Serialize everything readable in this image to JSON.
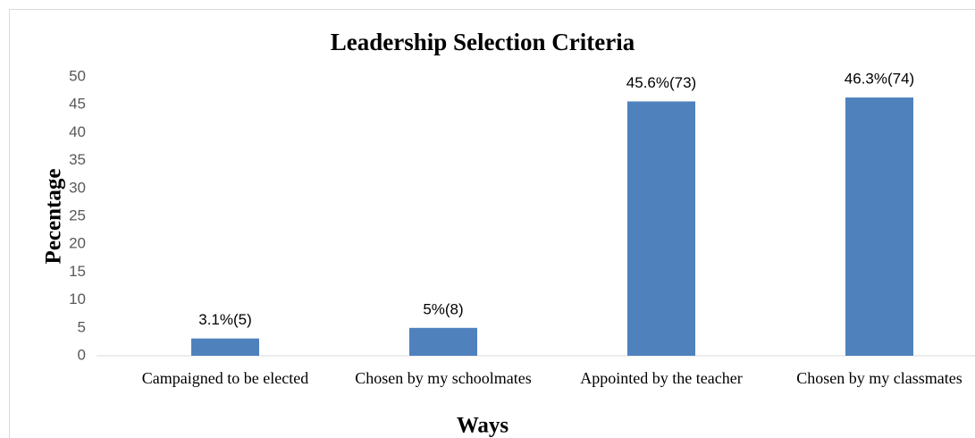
{
  "chart_data": {
    "type": "bar",
    "title": "Leadership Selection Criteria",
    "x_label": "Ways",
    "y_label": "Pecentage",
    "categories": [
      "Campaigned to be elected",
      "Chosen by my schoolmates",
      "Appointed by the teacher",
      "Chosen by my classmates"
    ],
    "values": [
      3.1,
      5,
      45.6,
      46.3
    ],
    "value_labels": [
      "3.1%(5)",
      "5%(8)",
      "45.6%(73)",
      "46.3%(74)"
    ],
    "color": "#4f81bd",
    "ylim": [
      0,
      50
    ],
    "yticks": [
      0,
      5,
      10,
      15,
      20,
      25,
      30,
      35,
      40,
      45,
      50
    ],
    "grid": false
  }
}
